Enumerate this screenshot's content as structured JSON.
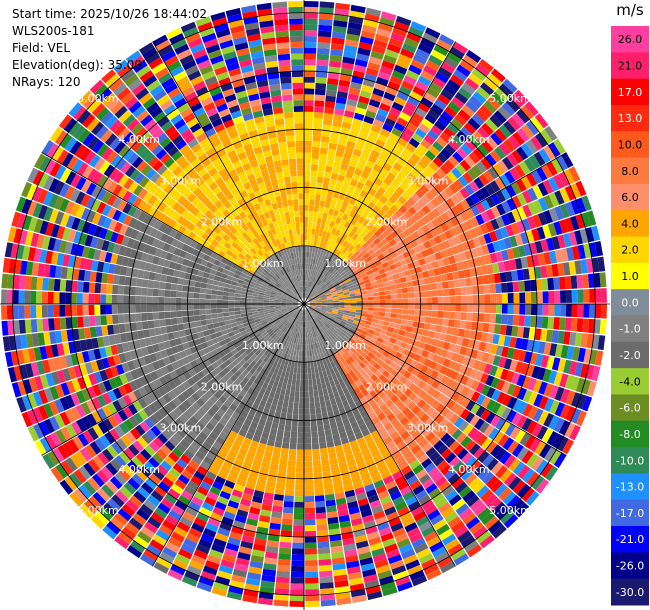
{
  "header": {
    "start_time": "Start time: 2025/10/26 18:44:02",
    "site": "WLS200s-181",
    "field": "Field: VEL",
    "elevation": "Elevation(deg): 35.00",
    "nrays": "NRays: 120"
  },
  "colorbar": {
    "unit": "m/s",
    "ticks": [
      "26.0",
      "21.0",
      "17.0",
      "13.0",
      "10.0",
      "8.0",
      "6.0",
      "4.0",
      "2.0",
      "1.0",
      "0.0",
      "-1.0",
      "-2.0",
      "-4.0",
      "-6.0",
      "-8.0",
      "-10.0",
      "-13.0",
      "-17.0",
      "-21.0",
      "-26.0",
      "-30.0"
    ],
    "colors": [
      "#ff3fa0",
      "#ff1f6a",
      "#ff0000",
      "#ff2a10",
      "#ff5a1e",
      "#ff7a3e",
      "#ff8f6a",
      "#ffa500",
      "#ffd700",
      "#ffff00",
      "#7f8c9a",
      "#808080",
      "#6b6b6b",
      "#9acd32",
      "#6b8e23",
      "#228b22",
      "#2e8b57",
      "#1e90ff",
      "#4169e1",
      "#0000ff",
      "#00008b",
      "#191970"
    ]
  },
  "chart_data": {
    "type": "ppi",
    "field": "VEL",
    "unit": "m/s",
    "elevation_deg": 35.0,
    "nrays": 120,
    "range_rings_km": [
      1.0,
      2.0,
      3.0,
      4.0,
      5.0
    ],
    "ring_labels": [
      "1.00km",
      "2.00km",
      "3.00km",
      "4.00km",
      "5.00km"
    ],
    "color_levels": [
      -30.0,
      -26.0,
      -21.0,
      -17.0,
      -13.0,
      -10.0,
      -8.0,
      -6.0,
      -4.0,
      -2.0,
      -1.0,
      0.0,
      1.0,
      2.0,
      4.0,
      6.0,
      8.0,
      10.0,
      13.0,
      17.0,
      21.0,
      26.0
    ],
    "regions": [
      {
        "description_range_km": [
          0.0,
          1.0
        ],
        "typical_velocity": 0.0
      },
      {
        "description_range_km": [
          1.0,
          2.0
        ],
        "north_half": 4.0,
        "south_half": -2.0,
        "east_sector": 8.0
      },
      {
        "description_range_km": [
          2.0,
          3.0
        ],
        "north_half": 4.0,
        "south_half": -2.0,
        "east_sector": 10.0
      }
    ]
  }
}
